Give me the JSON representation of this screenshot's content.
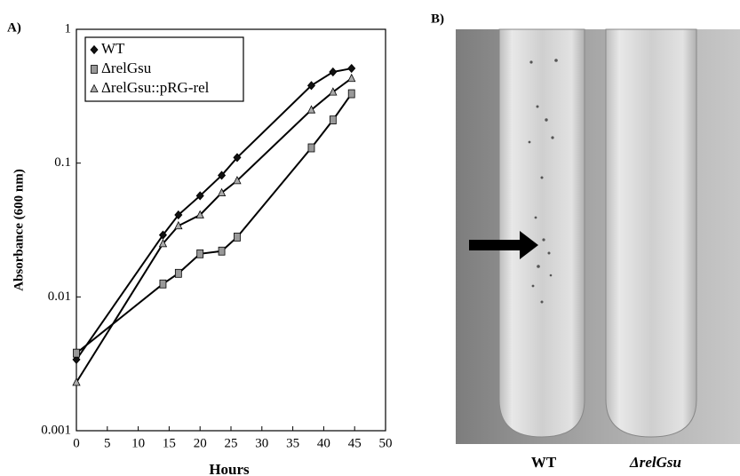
{
  "chart_data": {
    "type": "line",
    "panel_label": "A)",
    "x_label": "Hours",
    "y_label": "Absorbance (600 nm)",
    "xlim": [
      0,
      50
    ],
    "xticks": [
      0,
      5,
      10,
      15,
      20,
      25,
      30,
      35,
      40,
      45,
      50
    ],
    "ylim": [
      0.001,
      1
    ],
    "yticks": [
      0.001,
      0.01,
      0.1,
      1
    ],
    "log_y": true,
    "legend": "upper left",
    "series": [
      {
        "name": "WT",
        "color": "#111111",
        "marker": "diamond",
        "x": [
          0,
          14,
          16.5,
          20,
          23.5,
          26,
          38,
          41.5,
          44.5
        ],
        "values": [
          0.0034,
          0.029,
          0.041,
          0.057,
          0.081,
          0.11,
          0.38,
          0.48,
          0.51
        ]
      },
      {
        "name": "ΔrelGsu",
        "color": "#999999",
        "marker": "square",
        "x": [
          0,
          14,
          16.5,
          20,
          23.5,
          26,
          38,
          41.5,
          44.5
        ],
        "values": [
          0.0038,
          0.0125,
          0.015,
          0.021,
          0.022,
          0.028,
          0.13,
          0.21,
          0.33
        ]
      },
      {
        "name": "ΔrelGsu::pRG-rel",
        "color": "#aaaaaa",
        "marker": "triangle",
        "x": [
          0,
          14,
          16.5,
          20,
          23.5,
          26,
          38,
          41.5,
          44.5
        ],
        "values": [
          0.0023,
          0.025,
          0.034,
          0.041,
          0.06,
          0.074,
          0.25,
          0.34,
          0.43
        ]
      }
    ]
  },
  "photo": {
    "panel_label": "B)",
    "labels": [
      "WT",
      "ΔrelGsu"
    ]
  }
}
